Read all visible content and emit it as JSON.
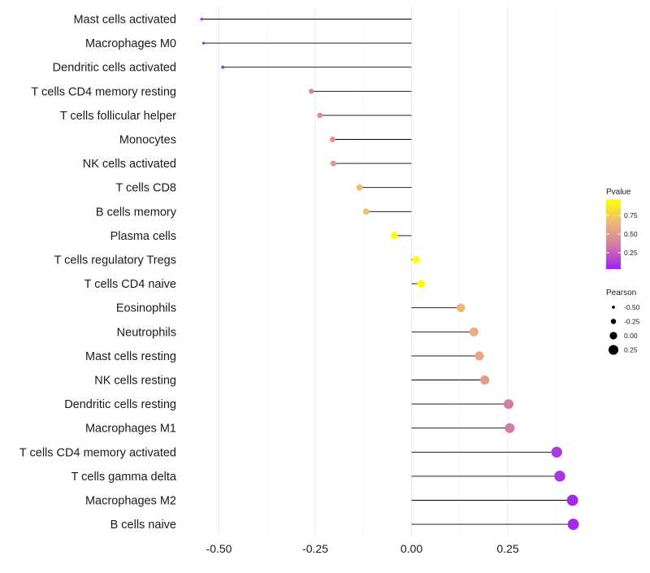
{
  "chart_data": {
    "type": "lollipop",
    "title": "",
    "xlabel": "",
    "ylabel": "",
    "xlim": [
      -0.6,
      0.44
    ],
    "x_ticks": [
      -0.5,
      -0.25,
      0.0,
      0.25
    ],
    "x_tick_labels": [
      "-0.50",
      "-0.25",
      "0.00",
      "0.25"
    ],
    "grid": true,
    "categories": [
      "Mast cells activated",
      "Macrophages M0",
      "Dendritic cells activated",
      "T cells CD4 memory resting",
      "T cells follicular helper",
      "Monocytes",
      "NK cells activated",
      "T cells CD8",
      "B cells memory",
      "Plasma cells",
      "T cells regulatory  Tregs ",
      "T cells CD4 naive",
      "Eosinophils",
      "Neutrophils",
      "Mast cells resting",
      "NK cells resting",
      "Dendritic cells resting",
      "Macrophages M1",
      "T cells CD4 memory activated",
      "T cells gamma delta",
      "Macrophages M2",
      "B cells naive"
    ],
    "pearson": [
      -0.545,
      -0.54,
      -0.49,
      -0.26,
      -0.238,
      -0.205,
      -0.203,
      -0.135,
      -0.118,
      -0.045,
      0.012,
      0.025,
      0.128,
      0.162,
      0.176,
      0.19,
      0.252,
      0.255,
      0.377,
      0.385,
      0.418,
      0.42
    ],
    "pvalue": [
      0.03,
      0.03,
      0.05,
      0.4,
      0.42,
      0.48,
      0.48,
      0.68,
      0.7,
      0.95,
      0.97,
      0.95,
      0.65,
      0.6,
      0.57,
      0.52,
      0.36,
      0.36,
      0.12,
      0.11,
      0.06,
      0.06
    ],
    "legend": {
      "position": "right",
      "color": {
        "title": "Pvalue",
        "ticks": [
          "0.75",
          "0.50",
          "0.25"
        ],
        "tick_values": [
          0.75,
          0.5,
          0.25
        ],
        "range": [
          0.03,
          0.97
        ],
        "colors": [
          "#a020f0",
          "#d27aa8",
          "#eeb77a",
          "#ffff00"
        ]
      },
      "size": {
        "title": "Pearson",
        "labels": [
          "-0.50",
          "-0.25",
          "0.00",
          "0.25"
        ],
        "values": [
          -0.5,
          -0.25,
          0.0,
          0.25
        ]
      }
    }
  }
}
